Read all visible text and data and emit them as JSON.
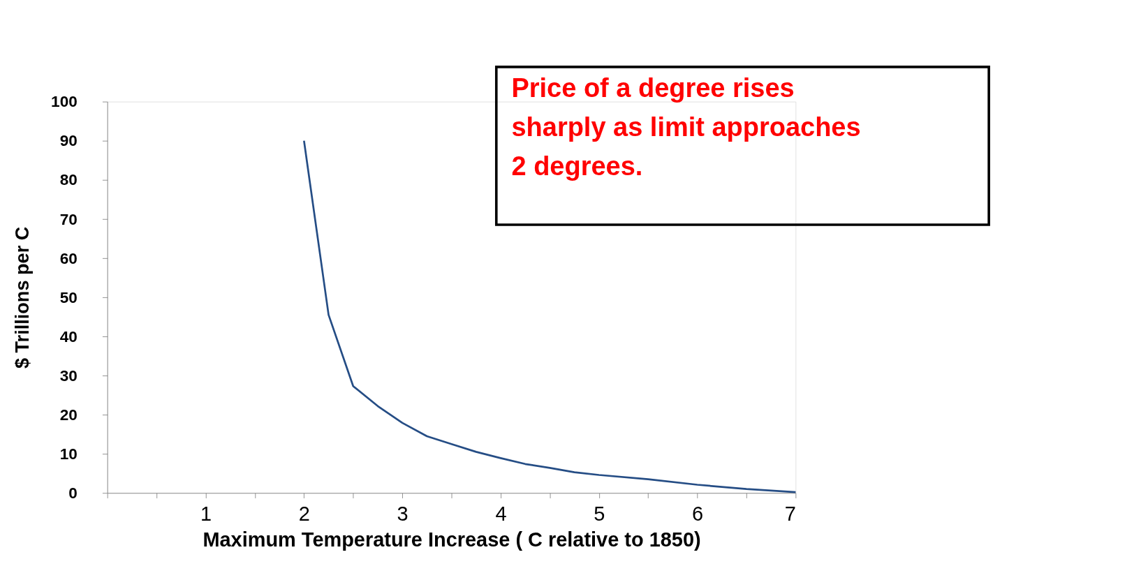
{
  "chart_data": {
    "type": "line",
    "xlabel": "Maximum Temperature Increase ( C relative to 1850)",
    "ylabel": "$ Trillions per C",
    "annotations": [
      "Price of a degree rises sharply as  limit approaches 2 degrees."
    ],
    "x": [
      2,
      2.25,
      2.5,
      2.75,
      3,
      3.25,
      3.5,
      3.75,
      4,
      4.25,
      4.5,
      4.75,
      5,
      5.5,
      6,
      6.5,
      7
    ],
    "series": [
      {
        "color": "#254d85",
        "values": [
          90,
          45.5,
          27.3,
          22.2,
          17.9,
          14.5,
          12.5,
          10.5,
          8.9,
          7.4,
          6.4,
          5.3,
          4.6,
          3.5,
          2.1,
          1.0,
          0.2
        ]
      }
    ],
    "xlim": [
      0,
      7
    ],
    "xticks": [
      {
        "value": 0,
        "label": null
      },
      {
        "value": 0.5,
        "label": null
      },
      1,
      {
        "value": 1.5,
        "label": null
      },
      2,
      {
        "value": 2.5,
        "label": null
      },
      3,
      {
        "value": 3.5,
        "label": null
      },
      4,
      {
        "value": 4.5,
        "label": null
      },
      5,
      {
        "value": 5.5,
        "label": null
      },
      6,
      {
        "value": 6.5,
        "label": null
      },
      7
    ],
    "ylim": [
      0,
      100
    ],
    "yticks": [
      0,
      10,
      20,
      30,
      40,
      50,
      60,
      70,
      80,
      90,
      100
    ],
    "grid": false,
    "marker": "none",
    "line_style": "solid"
  }
}
